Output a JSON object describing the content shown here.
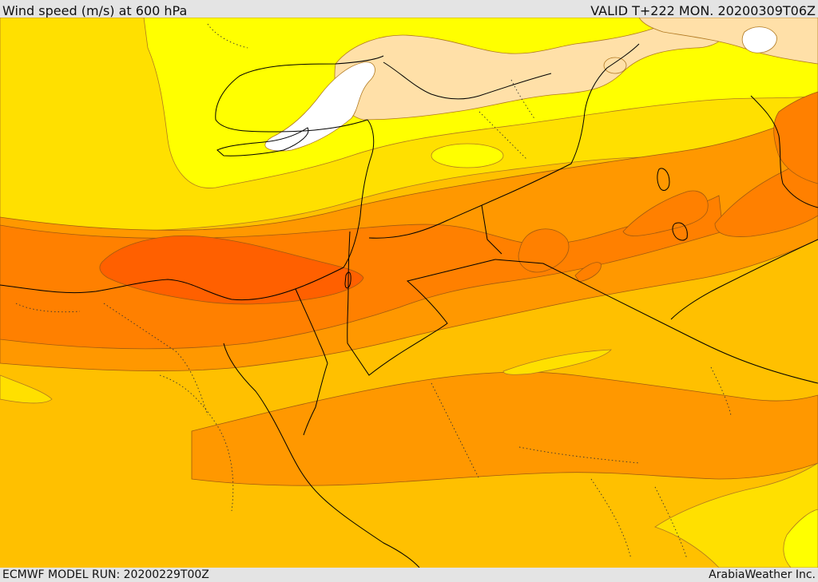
{
  "header": {
    "title": "Wind speed (m/s) at 600 hPa",
    "valid": "VALID T+222 MON. 20200309T06Z"
  },
  "footer": {
    "model_run": "ECMWF MODEL RUN: 20200229T00Z",
    "credit": "ArabiaWeather Inc."
  },
  "map": {
    "variable": "wind speed",
    "units": "m/s",
    "level": "600 hPa",
    "palette": {
      "lightest": "#ffffff",
      "pale": "#ffe0a8",
      "light": "#ffff00",
      "low": "#ffe000",
      "mid": "#ffc000",
      "high": "#ff9800",
      "higher": "#ff8000",
      "highest": "#ff6000"
    }
  }
}
